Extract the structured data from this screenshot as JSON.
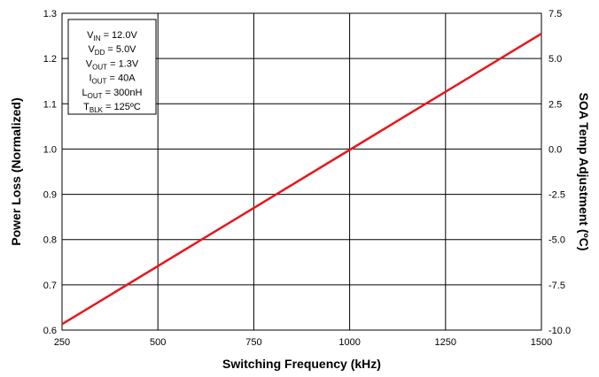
{
  "chart_data": {
    "type": "line",
    "xlabel": "Switching Frequency (kHz)",
    "ylabel": "Power Loss (Normalized)",
    "y2label": "SOA Temp Adjustment (ºC)",
    "xlim": [
      250,
      1500
    ],
    "ylim": [
      0.6,
      1.3
    ],
    "y2lim": [
      -10.0,
      7.5
    ],
    "x_ticks": [
      "250",
      "500",
      "750",
      "1000",
      "1250",
      "1500"
    ],
    "y_ticks": [
      "0.6",
      "0.7",
      "0.8",
      "0.9",
      "1.0",
      "1.1",
      "1.2",
      "1.3"
    ],
    "y2_ticks": [
      "-10.0",
      "-7.5",
      "-5.0",
      "-2.5",
      "0.0",
      "2.5",
      "5.0",
      "7.5"
    ],
    "grid": true,
    "series": [
      {
        "color": "#e8161b",
        "x": [
          250,
          1500
        ],
        "y": [
          0.613,
          1.255
        ]
      }
    ],
    "conditions": [
      {
        "main": "V",
        "sub": "IN",
        "value": " = 12.0V"
      },
      {
        "main": "V",
        "sub": "DD",
        "value": " = 5.0V"
      },
      {
        "main": "V",
        "sub": "OUT",
        "value": " = 1.3V"
      },
      {
        "main": "I",
        "sub": "OUT",
        "value": " = 40A"
      },
      {
        "main": "L",
        "sub": "OUT",
        "value": " = 300nH"
      },
      {
        "main": "T",
        "sub": "BLK",
        "value": " = 125ºC"
      }
    ],
    "legend_position": "top-left"
  }
}
